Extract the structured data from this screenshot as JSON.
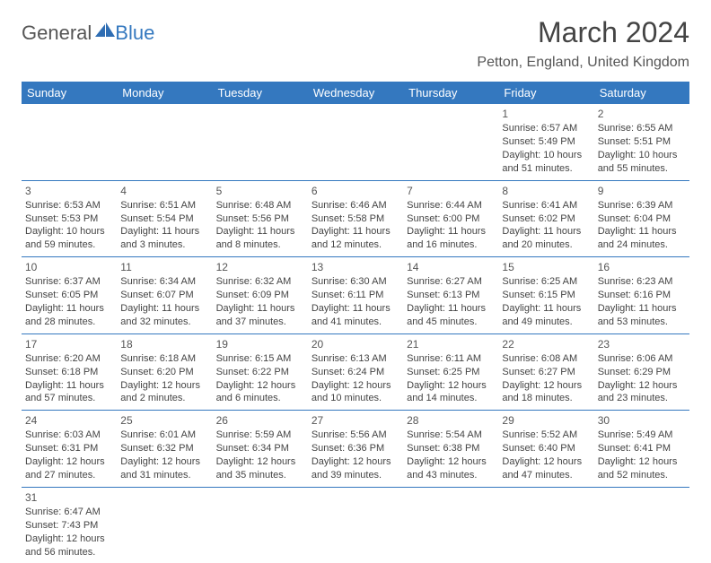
{
  "brand": {
    "part1": "General",
    "part2": "Blue"
  },
  "title": "March 2024",
  "location": "Petton, England, United Kingdom",
  "colors": {
    "header_bg": "#3478bf",
    "header_fg": "#ffffff",
    "rule": "#3478bf",
    "text": "#444444"
  },
  "weekdays": [
    "Sunday",
    "Monday",
    "Tuesday",
    "Wednesday",
    "Thursday",
    "Friday",
    "Saturday"
  ],
  "firstWeekday": 5,
  "daysInMonth": 31,
  "days": {
    "1": {
      "sunrise": "6:57 AM",
      "sunset": "5:49 PM",
      "day_h": 10,
      "day_m": 51
    },
    "2": {
      "sunrise": "6:55 AM",
      "sunset": "5:51 PM",
      "day_h": 10,
      "day_m": 55
    },
    "3": {
      "sunrise": "6:53 AM",
      "sunset": "5:53 PM",
      "day_h": 10,
      "day_m": 59
    },
    "4": {
      "sunrise": "6:51 AM",
      "sunset": "5:54 PM",
      "day_h": 11,
      "day_m": 3
    },
    "5": {
      "sunrise": "6:48 AM",
      "sunset": "5:56 PM",
      "day_h": 11,
      "day_m": 8
    },
    "6": {
      "sunrise": "6:46 AM",
      "sunset": "5:58 PM",
      "day_h": 11,
      "day_m": 12
    },
    "7": {
      "sunrise": "6:44 AM",
      "sunset": "6:00 PM",
      "day_h": 11,
      "day_m": 16
    },
    "8": {
      "sunrise": "6:41 AM",
      "sunset": "6:02 PM",
      "day_h": 11,
      "day_m": 20
    },
    "9": {
      "sunrise": "6:39 AM",
      "sunset": "6:04 PM",
      "day_h": 11,
      "day_m": 24
    },
    "10": {
      "sunrise": "6:37 AM",
      "sunset": "6:05 PM",
      "day_h": 11,
      "day_m": 28
    },
    "11": {
      "sunrise": "6:34 AM",
      "sunset": "6:07 PM",
      "day_h": 11,
      "day_m": 32
    },
    "12": {
      "sunrise": "6:32 AM",
      "sunset": "6:09 PM",
      "day_h": 11,
      "day_m": 37
    },
    "13": {
      "sunrise": "6:30 AM",
      "sunset": "6:11 PM",
      "day_h": 11,
      "day_m": 41
    },
    "14": {
      "sunrise": "6:27 AM",
      "sunset": "6:13 PM",
      "day_h": 11,
      "day_m": 45
    },
    "15": {
      "sunrise": "6:25 AM",
      "sunset": "6:15 PM",
      "day_h": 11,
      "day_m": 49
    },
    "16": {
      "sunrise": "6:23 AM",
      "sunset": "6:16 PM",
      "day_h": 11,
      "day_m": 53
    },
    "17": {
      "sunrise": "6:20 AM",
      "sunset": "6:18 PM",
      "day_h": 11,
      "day_m": 57
    },
    "18": {
      "sunrise": "6:18 AM",
      "sunset": "6:20 PM",
      "day_h": 12,
      "day_m": 2
    },
    "19": {
      "sunrise": "6:15 AM",
      "sunset": "6:22 PM",
      "day_h": 12,
      "day_m": 6
    },
    "20": {
      "sunrise": "6:13 AM",
      "sunset": "6:24 PM",
      "day_h": 12,
      "day_m": 10
    },
    "21": {
      "sunrise": "6:11 AM",
      "sunset": "6:25 PM",
      "day_h": 12,
      "day_m": 14
    },
    "22": {
      "sunrise": "6:08 AM",
      "sunset": "6:27 PM",
      "day_h": 12,
      "day_m": 18
    },
    "23": {
      "sunrise": "6:06 AM",
      "sunset": "6:29 PM",
      "day_h": 12,
      "day_m": 23
    },
    "24": {
      "sunrise": "6:03 AM",
      "sunset": "6:31 PM",
      "day_h": 12,
      "day_m": 27
    },
    "25": {
      "sunrise": "6:01 AM",
      "sunset": "6:32 PM",
      "day_h": 12,
      "day_m": 31
    },
    "26": {
      "sunrise": "5:59 AM",
      "sunset": "6:34 PM",
      "day_h": 12,
      "day_m": 35
    },
    "27": {
      "sunrise": "5:56 AM",
      "sunset": "6:36 PM",
      "day_h": 12,
      "day_m": 39
    },
    "28": {
      "sunrise": "5:54 AM",
      "sunset": "6:38 PM",
      "day_h": 12,
      "day_m": 43
    },
    "29": {
      "sunrise": "5:52 AM",
      "sunset": "6:40 PM",
      "day_h": 12,
      "day_m": 47
    },
    "30": {
      "sunrise": "5:49 AM",
      "sunset": "6:41 PM",
      "day_h": 12,
      "day_m": 52
    },
    "31": {
      "sunrise": "6:47 AM",
      "sunset": "7:43 PM",
      "day_h": 12,
      "day_m": 56
    }
  },
  "labels": {
    "sunrise": "Sunrise: ",
    "sunset": "Sunset: ",
    "daylight": "Daylight: ",
    "hours": " hours",
    "and": "and ",
    "minutes": " minutes."
  }
}
